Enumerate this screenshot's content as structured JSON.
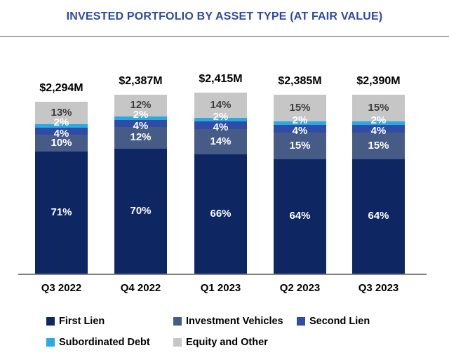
{
  "header": {
    "title": "INVESTED PORTFOLIO BY ASSET TYPE (AT FAIR VALUE)"
  },
  "colors": {
    "title": "#2b4aa5",
    "axis": "#808080",
    "divider": "#aaaaaa",
    "total_label": "#000000",
    "category_label": "#000000"
  },
  "chart_data": {
    "type": "bar",
    "stacked": true,
    "title": "INVESTED PORTFOLIO BY ASSET TYPE (AT FAIR VALUE)",
    "categories": [
      "Q3 2022",
      "Q4 2022",
      "Q1 2023",
      "Q2 2023",
      "Q3 2023"
    ],
    "totals": [
      {
        "label": "$2,294M",
        "value": 2294
      },
      {
        "label": "$2,387M",
        "value": 2387
      },
      {
        "label": "$2,415M",
        "value": 2415
      },
      {
        "label": "$2,385M",
        "value": 2385
      },
      {
        "label": "$2,390M",
        "value": 2390
      }
    ],
    "series": [
      {
        "name": "First Lien",
        "color": "#0e2763",
        "label_color": "#ffffff",
        "values": [
          71,
          70,
          66,
          64,
          64
        ]
      },
      {
        "name": "Investment Vehicles",
        "color": "#465c87",
        "label_color": "#ffffff",
        "values": [
          10,
          12,
          14,
          15,
          15
        ]
      },
      {
        "name": "Second Lien",
        "color": "#2f4da6",
        "label_color": "#ffffff",
        "values": [
          4,
          4,
          4,
          4,
          4
        ]
      },
      {
        "name": "Subordinated Debt",
        "color": "#29abe2",
        "label_color": "#ffffff",
        "values": [
          2,
          2,
          2,
          2,
          2
        ]
      },
      {
        "name": "Equity and Other",
        "color": "#c6c6c6",
        "label_color": "#3f3f3f",
        "values": [
          13,
          12,
          14,
          15,
          15
        ]
      }
    ],
    "value_suffix": "%",
    "legend": [
      "First Lien",
      "Investment Vehicles",
      "Second Lien",
      "Subordinated Debt",
      "Equity and Other"
    ],
    "legend_position": "bottom",
    "ylim": [
      0,
      100
    ],
    "grid": false
  }
}
